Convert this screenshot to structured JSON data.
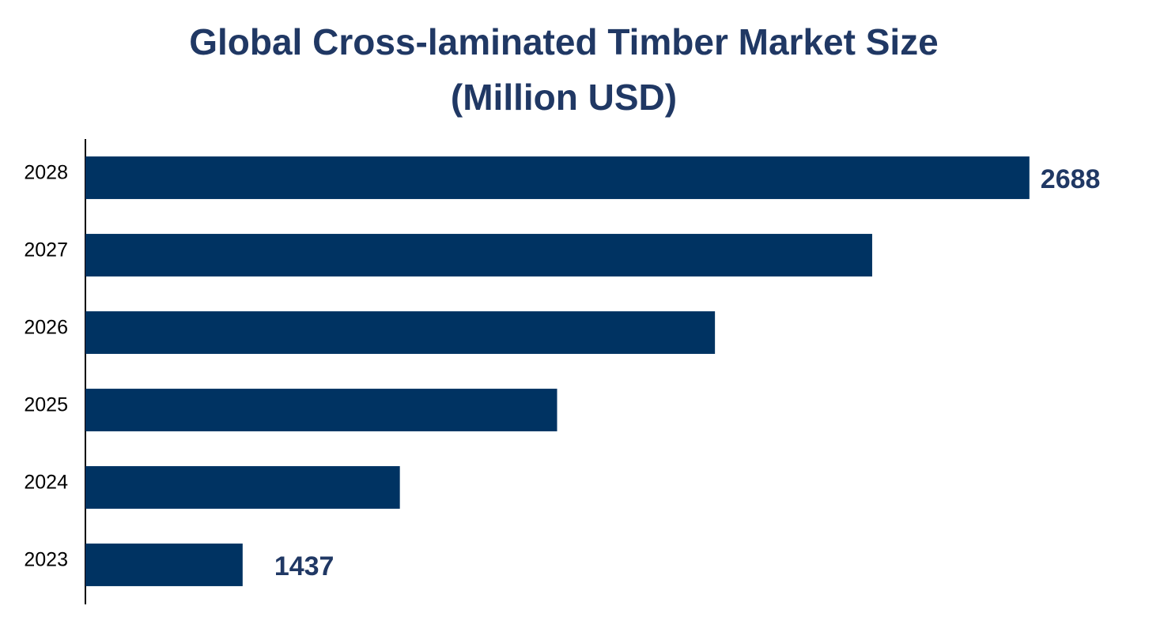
{
  "chart_data": {
    "type": "hbar",
    "title": "Global Cross-laminated Timber Market Size",
    "subtitle": "(Million USD)",
    "categories": [
      "2023",
      "2024",
      "2025",
      "2026",
      "2027",
      "2028"
    ],
    "values": [
      1437,
      1687,
      1937,
      2188,
      2438,
      2688
    ],
    "value_labels": [
      "1437",
      null,
      null,
      null,
      null,
      "2688"
    ],
    "color": "#003362",
    "xlim": [
      1187,
      2902
    ]
  }
}
